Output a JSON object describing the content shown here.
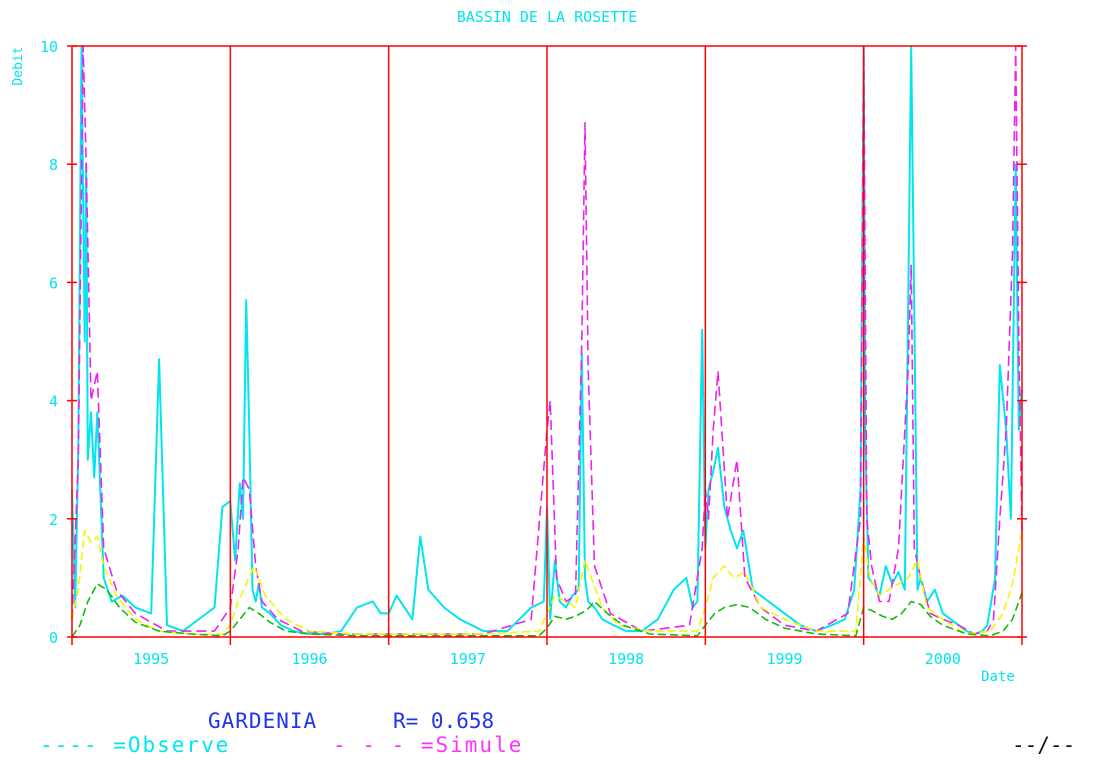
{
  "chart_data": {
    "type": "line",
    "title": "BASSIN DE LA ROSETTE",
    "ylabel": "Debit",
    "xlabel": "Date",
    "ylim": [
      0,
      10
    ],
    "xlim": [
      1994.5,
      2000.5
    ],
    "y_ticks": [
      0,
      2,
      4,
      6,
      8,
      10
    ],
    "x_tick_labels": [
      "1995",
      "1996",
      "1997",
      "1998",
      "1999",
      "2000"
    ],
    "year_boundaries": [
      1995.5,
      1996.5,
      1997.5,
      1998.5,
      1999.5
    ],
    "grid": "vertical year dividers",
    "colors": {
      "frame": "#ff0000",
      "observed": "#00e5ee",
      "simulated": "#ee22ee",
      "yellow_curve": "#f5f500",
      "green_curve": "#11bb11",
      "title": "#00e5ee",
      "footer": "#2233ee"
    },
    "series": [
      {
        "name": "Observe",
        "color": "#00e5ee",
        "x": [
          1994.5,
          1994.52,
          1994.54,
          1994.56,
          1994.58,
          1994.59,
          1994.6,
          1994.62,
          1994.64,
          1994.66,
          1994.7,
          1994.75,
          1994.82,
          1994.9,
          1995.0,
          1995.05,
          1995.1,
          1995.2,
          1995.3,
          1995.4,
          1995.45,
          1995.5,
          1995.53,
          1995.56,
          1995.58,
          1995.6,
          1995.62,
          1995.64,
          1995.66,
          1995.68,
          1995.7,
          1995.75,
          1995.82,
          1995.9,
          1996.0,
          1996.1,
          1996.2,
          1996.3,
          1996.4,
          1996.45,
          1996.5,
          1996.55,
          1996.6,
          1996.65,
          1996.7,
          1996.75,
          1996.85,
          1996.95,
          1997.1,
          1997.25,
          1997.4,
          1997.48,
          1997.5,
          1997.52,
          1997.55,
          1997.58,
          1997.62,
          1997.66,
          1997.7,
          1997.72,
          1997.74,
          1997.76,
          1997.8,
          1997.85,
          1997.92,
          1998.0,
          1998.1,
          1998.2,
          1998.3,
          1998.38,
          1998.42,
          1998.45,
          1998.48,
          1998.5,
          1998.52,
          1998.55,
          1998.58,
          1998.62,
          1998.66,
          1998.7,
          1998.74,
          1998.8,
          1998.9,
          1999.0,
          1999.1,
          1999.2,
          1999.3,
          1999.38,
          1999.44,
          1999.48,
          1999.5,
          1999.51,
          1999.53,
          1999.56,
          1999.6,
          1999.64,
          1999.68,
          1999.72,
          1999.76,
          1999.8,
          1999.84,
          1999.86,
          1999.9,
          1999.95,
          2000.0,
          2000.05,
          2000.1,
          2000.15,
          2000.2,
          2000.25,
          2000.28,
          2000.3,
          2000.33,
          2000.36,
          2000.4,
          2000.43,
          2000.46,
          2000.48,
          2000.5
        ],
        "values": [
          2.5,
          0.5,
          3.2,
          10.0,
          5.0,
          8.0,
          3.0,
          3.8,
          2.7,
          3.8,
          1.0,
          0.6,
          0.7,
          0.5,
          0.4,
          4.7,
          0.2,
          0.1,
          0.3,
          0.5,
          2.2,
          2.3,
          1.3,
          2.6,
          2.0,
          5.7,
          3.5,
          0.8,
          0.6,
          0.9,
          0.5,
          0.4,
          0.2,
          0.1,
          0.05,
          0.05,
          0.1,
          0.5,
          0.6,
          0.4,
          0.4,
          0.7,
          0.5,
          0.3,
          1.7,
          0.8,
          0.5,
          0.3,
          0.1,
          0.1,
          0.5,
          0.6,
          2.2,
          0.3,
          1.3,
          0.6,
          0.5,
          0.7,
          0.8,
          4.8,
          1.0,
          0.6,
          0.5,
          0.3,
          0.2,
          0.1,
          0.1,
          0.3,
          0.8,
          1.0,
          0.5,
          0.6,
          5.2,
          1.5,
          2.5,
          2.8,
          3.2,
          2.2,
          1.8,
          1.5,
          1.8,
          0.8,
          0.6,
          0.4,
          0.2,
          0.1,
          0.2,
          0.3,
          0.8,
          2.5,
          10.0,
          3.5,
          1.0,
          0.9,
          0.7,
          1.2,
          0.9,
          1.1,
          0.8,
          10.0,
          0.8,
          1.0,
          0.6,
          0.8,
          0.4,
          0.3,
          0.2,
          0.1,
          0.05,
          0.1,
          0.2,
          0.5,
          1.0,
          4.6,
          3.5,
          2.0,
          8.0,
          3.5,
          4.2
        ]
      },
      {
        "name": "Simule",
        "color": "#ee22ee",
        "x": [
          1994.5,
          1994.54,
          1994.57,
          1994.59,
          1994.62,
          1994.66,
          1994.7,
          1994.78,
          1994.9,
          1995.1,
          1995.4,
          1995.5,
          1995.55,
          1995.58,
          1995.62,
          1995.66,
          1995.7,
          1995.8,
          1995.95,
          1996.2,
          1996.5,
          1996.8,
          1997.1,
          1997.4,
          1997.5,
          1997.52,
          1997.56,
          1997.62,
          1997.68,
          1997.72,
          1997.74,
          1997.76,
          1997.8,
          1997.9,
          1998.1,
          1998.4,
          1998.48,
          1998.5,
          1998.52,
          1998.55,
          1998.58,
          1998.64,
          1998.7,
          1998.75,
          1998.85,
          1999.0,
          1999.2,
          1999.4,
          1999.48,
          1999.5,
          1999.52,
          1999.55,
          1999.6,
          1999.66,
          1999.72,
          1999.78,
          1999.8,
          1999.82,
          1999.86,
          1999.92,
          2000.0,
          2000.1,
          2000.2,
          2000.28,
          2000.32,
          2000.36,
          2000.4,
          2000.44,
          2000.46,
          2000.48,
          2000.5
        ],
        "values": [
          0.3,
          3.0,
          10.0,
          8.0,
          4.0,
          4.5,
          1.5,
          0.8,
          0.4,
          0.1,
          0.1,
          0.5,
          1.5,
          2.7,
          2.5,
          1.2,
          0.6,
          0.3,
          0.1,
          0.05,
          0.05,
          0.05,
          0.05,
          0.3,
          3.5,
          4.0,
          1.0,
          0.6,
          0.7,
          5.0,
          8.7,
          4.5,
          1.2,
          0.4,
          0.1,
          0.2,
          1.5,
          2.5,
          2.0,
          3.5,
          4.5,
          2.0,
          3.0,
          1.0,
          0.5,
          0.2,
          0.1,
          0.4,
          2.0,
          10.0,
          2.0,
          1.2,
          0.6,
          0.6,
          1.5,
          4.5,
          6.3,
          1.5,
          1.0,
          0.4,
          0.3,
          0.2,
          0.05,
          0.1,
          0.3,
          2.0,
          3.5,
          6.5,
          10.0,
          5.0,
          1.8
        ]
      },
      {
        "color": "#f5f500",
        "x": [
          1994.5,
          1994.54,
          1994.58,
          1994.62,
          1994.66,
          1994.7,
          1994.78,
          1994.9,
          1995.05,
          1995.25,
          1995.45,
          1995.5,
          1995.55,
          1995.6,
          1995.65,
          1995.72,
          1995.85,
          1996.0,
          1996.3,
          1996.7,
          1997.1,
          1997.45,
          1997.5,
          1997.55,
          1997.62,
          1997.68,
          1997.74,
          1997.78,
          1997.85,
          1997.95,
          1998.15,
          1998.45,
          1998.5,
          1998.55,
          1998.62,
          1998.68,
          1998.75,
          1998.85,
          1999.0,
          1999.2,
          1999.45,
          1999.5,
          1999.54,
          1999.6,
          1999.66,
          1999.72,
          1999.78,
          1999.84,
          1999.9,
          2000.0,
          2000.15,
          2000.3,
          2000.38,
          2000.44,
          2000.5
        ],
        "values": [
          0.3,
          0.8,
          1.8,
          1.6,
          1.7,
          1.2,
          0.7,
          0.3,
          0.1,
          0.05,
          0.05,
          0.2,
          0.6,
          0.9,
          1.2,
          0.7,
          0.3,
          0.1,
          0.05,
          0.05,
          0.05,
          0.1,
          0.4,
          0.7,
          0.6,
          0.5,
          1.3,
          1.0,
          0.5,
          0.2,
          0.1,
          0.1,
          0.5,
          1.0,
          1.2,
          1.0,
          1.1,
          0.5,
          0.3,
          0.1,
          0.1,
          1.7,
          1.0,
          0.7,
          0.8,
          0.9,
          1.0,
          1.3,
          0.5,
          0.3,
          0.05,
          0.1,
          0.4,
          0.9,
          1.8
        ]
      },
      {
        "color": "#11bb11",
        "x": [
          1994.5,
          1994.55,
          1994.6,
          1994.66,
          1994.72,
          1994.8,
          1994.9,
          1995.05,
          1995.25,
          1995.45,
          1995.5,
          1995.56,
          1995.62,
          1995.68,
          1995.75,
          1995.85,
          1996.0,
          1996.3,
          1996.7,
          1997.1,
          1997.45,
          1997.5,
          1997.55,
          1997.62,
          1997.68,
          1997.75,
          1997.8,
          1997.88,
          1997.98,
          1998.15,
          1998.45,
          1998.5,
          1998.56,
          1998.62,
          1998.7,
          1998.78,
          1998.88,
          1999.0,
          1999.2,
          1999.45,
          1999.5,
          1999.55,
          1999.62,
          1999.68,
          1999.74,
          1999.8,
          1999.86,
          1999.92,
          2000.0,
          2000.15,
          2000.3,
          2000.38,
          2000.44,
          2000.5
        ],
        "values": [
          0.0,
          0.2,
          0.6,
          0.9,
          0.8,
          0.5,
          0.25,
          0.1,
          0.05,
          0.02,
          0.1,
          0.3,
          0.5,
          0.4,
          0.25,
          0.1,
          0.05,
          0.02,
          0.02,
          0.02,
          0.02,
          0.15,
          0.35,
          0.3,
          0.35,
          0.45,
          0.6,
          0.4,
          0.2,
          0.05,
          0.02,
          0.2,
          0.4,
          0.5,
          0.55,
          0.5,
          0.3,
          0.15,
          0.05,
          0.02,
          0.5,
          0.45,
          0.35,
          0.3,
          0.4,
          0.6,
          0.55,
          0.35,
          0.2,
          0.05,
          0.02,
          0.1,
          0.3,
          0.75
        ]
      }
    ]
  },
  "footer": {
    "model_name": "GARDENIA",
    "r_value": "R= 0.658",
    "legend_observe": "---- =Observe",
    "legend_simule": "- - - =Simule",
    "date_stamp": "--/--"
  }
}
